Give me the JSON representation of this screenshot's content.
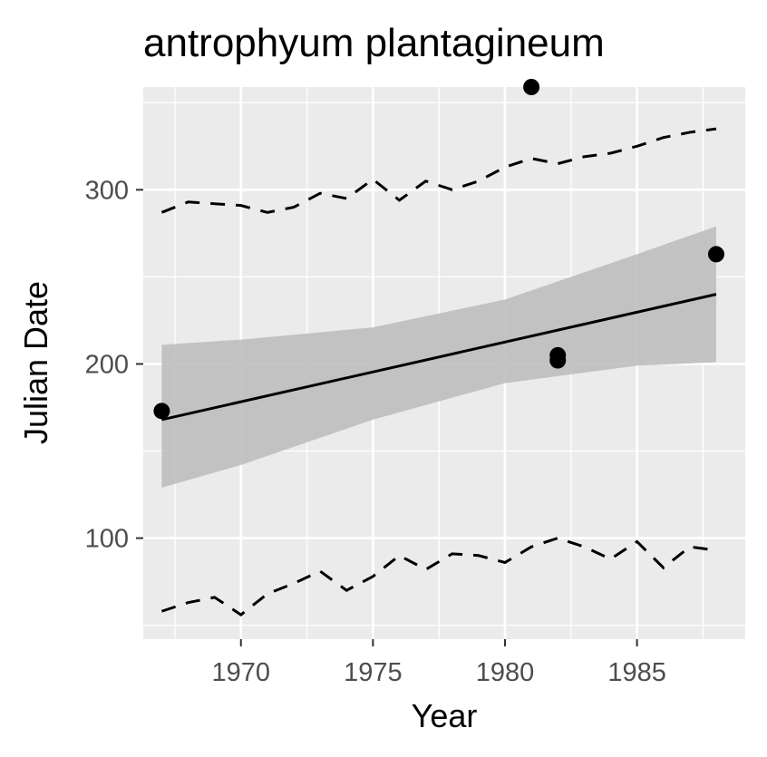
{
  "chart_data": {
    "type": "scatter",
    "title": "antrophyum plantagineum",
    "xlabel": "Year",
    "ylabel": "Julian Date",
    "xlim": [
      1966.3,
      1989.1
    ],
    "ylim": [
      42,
      359
    ],
    "x_ticks": [
      1970,
      1975,
      1980,
      1985
    ],
    "x_tick_labels": [
      "1970",
      "1975",
      "1980",
      "1985"
    ],
    "x_minor_ticks": [
      1967.5,
      1972.5,
      1977.5,
      1982.5,
      1987.5
    ],
    "y_ticks": [
      100,
      200,
      300
    ],
    "y_tick_labels": [
      "100",
      "200",
      "300"
    ],
    "y_minor_ticks": [
      50,
      150,
      250,
      350
    ],
    "grid": true,
    "panel_background": "#ebebeb",
    "grid_color": "#ffffff",
    "series": [
      {
        "kind": "points",
        "color": "#000000",
        "x": [
          1967,
          1981,
          1982,
          1982,
          1988
        ],
        "y": [
          173,
          359,
          205,
          202,
          263
        ]
      },
      {
        "kind": "fit_line",
        "color": "#000000",
        "x": [
          1967,
          1988
        ],
        "y": [
          168,
          240
        ]
      },
      {
        "kind": "confidence_band",
        "fill": "#bebebe",
        "x": [
          1967,
          1970,
          1975,
          1980,
          1985,
          1988
        ],
        "upper": [
          211,
          214,
          221,
          237,
          263,
          279
        ],
        "lower": [
          129,
          142,
          168,
          189,
          199,
          201
        ]
      },
      {
        "kind": "upper_quantile_dashed",
        "color": "#000000",
        "x": [
          1967,
          1968,
          1969,
          1970,
          1971,
          1972,
          1973,
          1974,
          1975,
          1976,
          1977,
          1978,
          1979,
          1980,
          1981,
          1982,
          1983,
          1984,
          1985,
          1986,
          1987,
          1988
        ],
        "y": [
          287,
          293,
          292,
          291,
          287,
          290,
          298,
          295,
          306,
          294,
          305,
          300,
          305,
          313,
          318,
          315,
          319,
          321,
          325,
          330,
          333,
          335
        ]
      },
      {
        "kind": "lower_quantile_dashed",
        "color": "#000000",
        "x": [
          1967,
          1968,
          1969,
          1970,
          1971,
          1972,
          1973,
          1974,
          1975,
          1976,
          1977,
          1978,
          1979,
          1980,
          1981,
          1982,
          1983,
          1984,
          1985,
          1986,
          1987,
          1988
        ],
        "y": [
          58,
          63,
          66,
          56,
          68,
          74,
          81,
          70,
          78,
          90,
          82,
          91,
          90,
          86,
          95,
          100,
          95,
          88,
          98,
          83,
          95,
          93
        ]
      }
    ]
  }
}
